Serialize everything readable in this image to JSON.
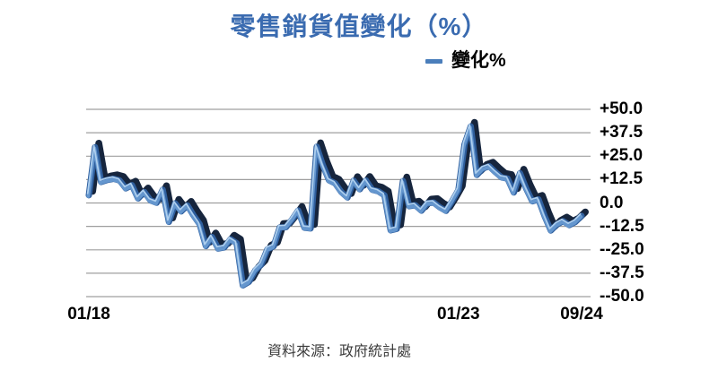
{
  "header": {
    "title": "零售銷貨值變化（%）"
  },
  "legend": {
    "label": "變化%"
  },
  "footer": {
    "source": "資料來源：政府統計處"
  },
  "colors": {
    "title": "#3a6bb0",
    "legend_dash": "#4a7ebb",
    "series_dark": "#16253d",
    "series_mid": "#2f5f9e",
    "series_face": "#6496ce",
    "series_highlight": "#aecfee",
    "gridline": "#9f9f9f",
    "axis_text": "#000000",
    "source_text": "#3b3b3b"
  },
  "chart_data": {
    "type": "line",
    "style": "3d-ribbon",
    "title": "零售銷貨值變化（%）",
    "xlabel": "",
    "ylabel": "",
    "ylim": [
      -50,
      50
    ],
    "grid": "horizontal",
    "legend_position": "top-right",
    "x": [
      "01/18",
      "02/18",
      "03/18",
      "04/18",
      "05/18",
      "06/18",
      "07/18",
      "08/18",
      "09/18",
      "10/18",
      "11/18",
      "12/18",
      "01/19",
      "02/19",
      "03/19",
      "04/19",
      "05/19",
      "06/19",
      "07/19",
      "08/19",
      "09/19",
      "10/19",
      "11/19",
      "12/19",
      "01/20",
      "02/20",
      "03/20",
      "04/20",
      "05/20",
      "06/20",
      "07/20",
      "08/20",
      "09/20",
      "10/20",
      "11/20",
      "12/20",
      "01/21",
      "02/21",
      "03/21",
      "04/21",
      "05/21",
      "06/21",
      "07/21",
      "08/21",
      "09/21",
      "10/21",
      "11/21",
      "12/21",
      "01/22",
      "02/22",
      "03/22",
      "04/22",
      "05/22",
      "06/22",
      "07/22",
      "08/22",
      "09/22",
      "10/22",
      "11/22",
      "12/22",
      "01/23",
      "02/23",
      "03/23",
      "04/23",
      "05/23",
      "06/23",
      "07/23",
      "08/23",
      "09/23",
      "10/23",
      "11/23",
      "12/23",
      "01/24",
      "02/24",
      "03/24",
      "04/24",
      "05/24",
      "06/24",
      "07/24",
      "08/24",
      "09/24"
    ],
    "series": [
      {
        "name": "變化%",
        "values": [
          4.1,
          29.8,
          11.2,
          12.3,
          12.9,
          12.0,
          7.8,
          9.5,
          2.4,
          5.9,
          1.4,
          0.1,
          7.1,
          -10.1,
          -0.2,
          -4.5,
          -1.3,
          -6.7,
          -11.4,
          -23.0,
          -18.2,
          -24.3,
          -23.7,
          -19.4,
          -21.5,
          -44.0,
          -42.1,
          -36.1,
          -32.8,
          -24.7,
          -23.1,
          -13.1,
          -12.9,
          -8.8,
          -4.0,
          -13.2,
          -13.6,
          30.0,
          20.1,
          12.1,
          10.5,
          5.8,
          2.9,
          11.9,
          7.3,
          12.0,
          7.1,
          6.2,
          4.1,
          -14.6,
          -13.8,
          11.7,
          -1.7,
          -1.2,
          -4.1,
          -0.1,
          0.2,
          -2.4,
          -4.2,
          1.1,
          7.0,
          31.3,
          40.9,
          15.0,
          18.4,
          19.6,
          16.5,
          13.7,
          13.0,
          5.6,
          15.9,
          7.8,
          0.9,
          1.9,
          -7.0,
          -14.7,
          -11.5,
          -9.7,
          -11.8,
          -10.1,
          -6.9
        ]
      }
    ],
    "x_ticks": [
      {
        "label": "01/18",
        "index": 0
      },
      {
        "label": "01/23",
        "index": 60
      },
      {
        "label": "09/24",
        "index": 80
      }
    ],
    "y_ticks": [
      {
        "label": "+50.0",
        "value": 50.0
      },
      {
        "label": "+37.5",
        "value": 37.5
      },
      {
        "label": "+25.0",
        "value": 25.0
      },
      {
        "label": "+12.5",
        "value": 12.5
      },
      {
        "label": "0.0",
        "value": 0.0
      },
      {
        "label": "--12.5",
        "value": -12.5
      },
      {
        "label": "--25.0",
        "value": -25.0
      },
      {
        "label": "--37.5",
        "value": -37.5
      },
      {
        "label": "--50.0",
        "value": -50.0
      }
    ]
  }
}
